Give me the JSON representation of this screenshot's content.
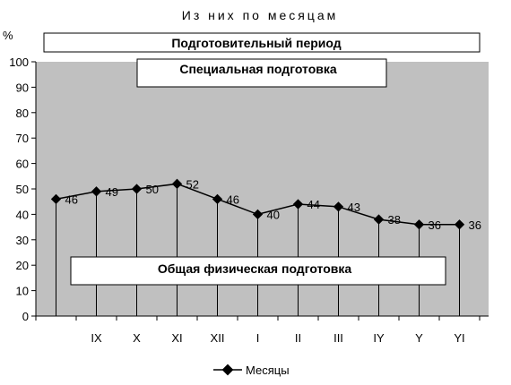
{
  "chart_data": {
    "type": "line",
    "title": "Из них по месяцам",
    "ylabel": "%",
    "xlabel": "",
    "ylim": [
      0,
      100
    ],
    "yticks": [
      0,
      10,
      20,
      30,
      40,
      50,
      60,
      70,
      80,
      90,
      100
    ],
    "grid": false,
    "legend_position": "bottom",
    "categories": [
      "",
      "IX",
      "X",
      "XI",
      "XII",
      "I",
      "II",
      "III",
      "IY",
      "Y",
      "YI"
    ],
    "series": [
      {
        "name": "Месяцы",
        "values": [
          46,
          49,
          50,
          52,
          46,
          40,
          44,
          43,
          38,
          36,
          36
        ],
        "color": "#000000"
      }
    ],
    "annotations": {
      "top_box": "Подготовительный период",
      "upper_box": "Специальная подготовка",
      "lower_box": "Общая физическая подготовка"
    },
    "colors": {
      "plot_background": "#c0c0c0",
      "line": "#000000",
      "box_fill": "#ffffff"
    }
  }
}
